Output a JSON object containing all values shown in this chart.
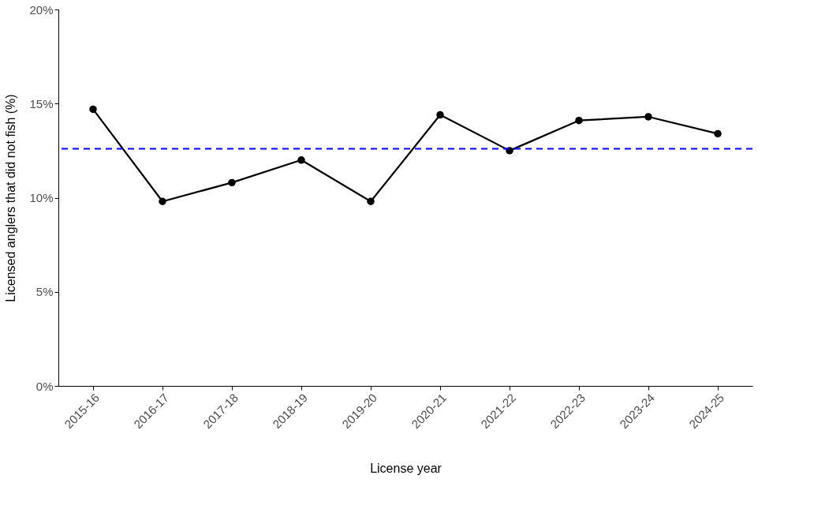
{
  "chart_data": {
    "type": "line",
    "xlabel": "License year",
    "ylabel": "Licensed anglers that did not fish (%)",
    "categories": [
      "2015-16",
      "2016-17",
      "2017-18",
      "2018-19",
      "2019-20",
      "2020-21",
      "2021-22",
      "2022-23",
      "2023-24",
      "2024-25"
    ],
    "series": [
      {
        "color": "#000000",
        "values": [
          14.7,
          9.8,
          10.8,
          12.0,
          9.8,
          14.4,
          12.5,
          14.1,
          14.3,
          13.4
        ]
      }
    ],
    "ylim": [
      0,
      20
    ],
    "yticks": [
      {
        "value": 0,
        "label": "0%"
      },
      {
        "value": 5,
        "label": "5%"
      },
      {
        "value": 10,
        "label": "10%"
      },
      {
        "value": 15,
        "label": "15%"
      },
      {
        "value": 20,
        "label": "20%"
      }
    ],
    "ref_lines": [
      {
        "axis": "y",
        "value": 12.6,
        "color": "#0000ff",
        "line_style": "dashed"
      }
    ],
    "marker": "circle",
    "line_style": "solid",
    "grid": false
  }
}
